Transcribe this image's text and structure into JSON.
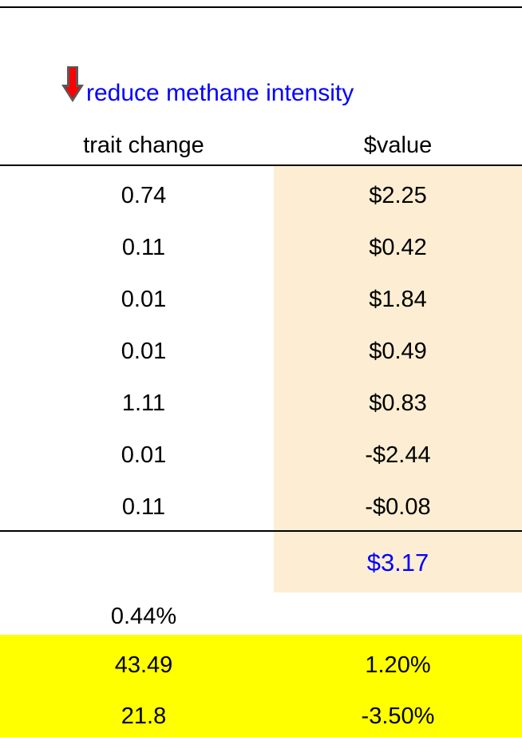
{
  "title": "reduce methane intensity",
  "table": {
    "headers": [
      "trait change",
      "$value"
    ],
    "rows": [
      [
        "0.74",
        "$2.25"
      ],
      [
        "0.11",
        "$0.42"
      ],
      [
        "0.01",
        "$1.84"
      ],
      [
        "0.01",
        "$0.49"
      ],
      [
        "1.11",
        "$0.83"
      ],
      [
        "0.01",
        "-$2.44"
      ],
      [
        "0.11",
        "-$0.08"
      ]
    ],
    "total": "$3.17",
    "summary": "0.44%",
    "highlighted_rows": [
      [
        "43.49",
        "1.20%"
      ],
      [
        "21.8",
        "-3.50%"
      ]
    ]
  }
}
